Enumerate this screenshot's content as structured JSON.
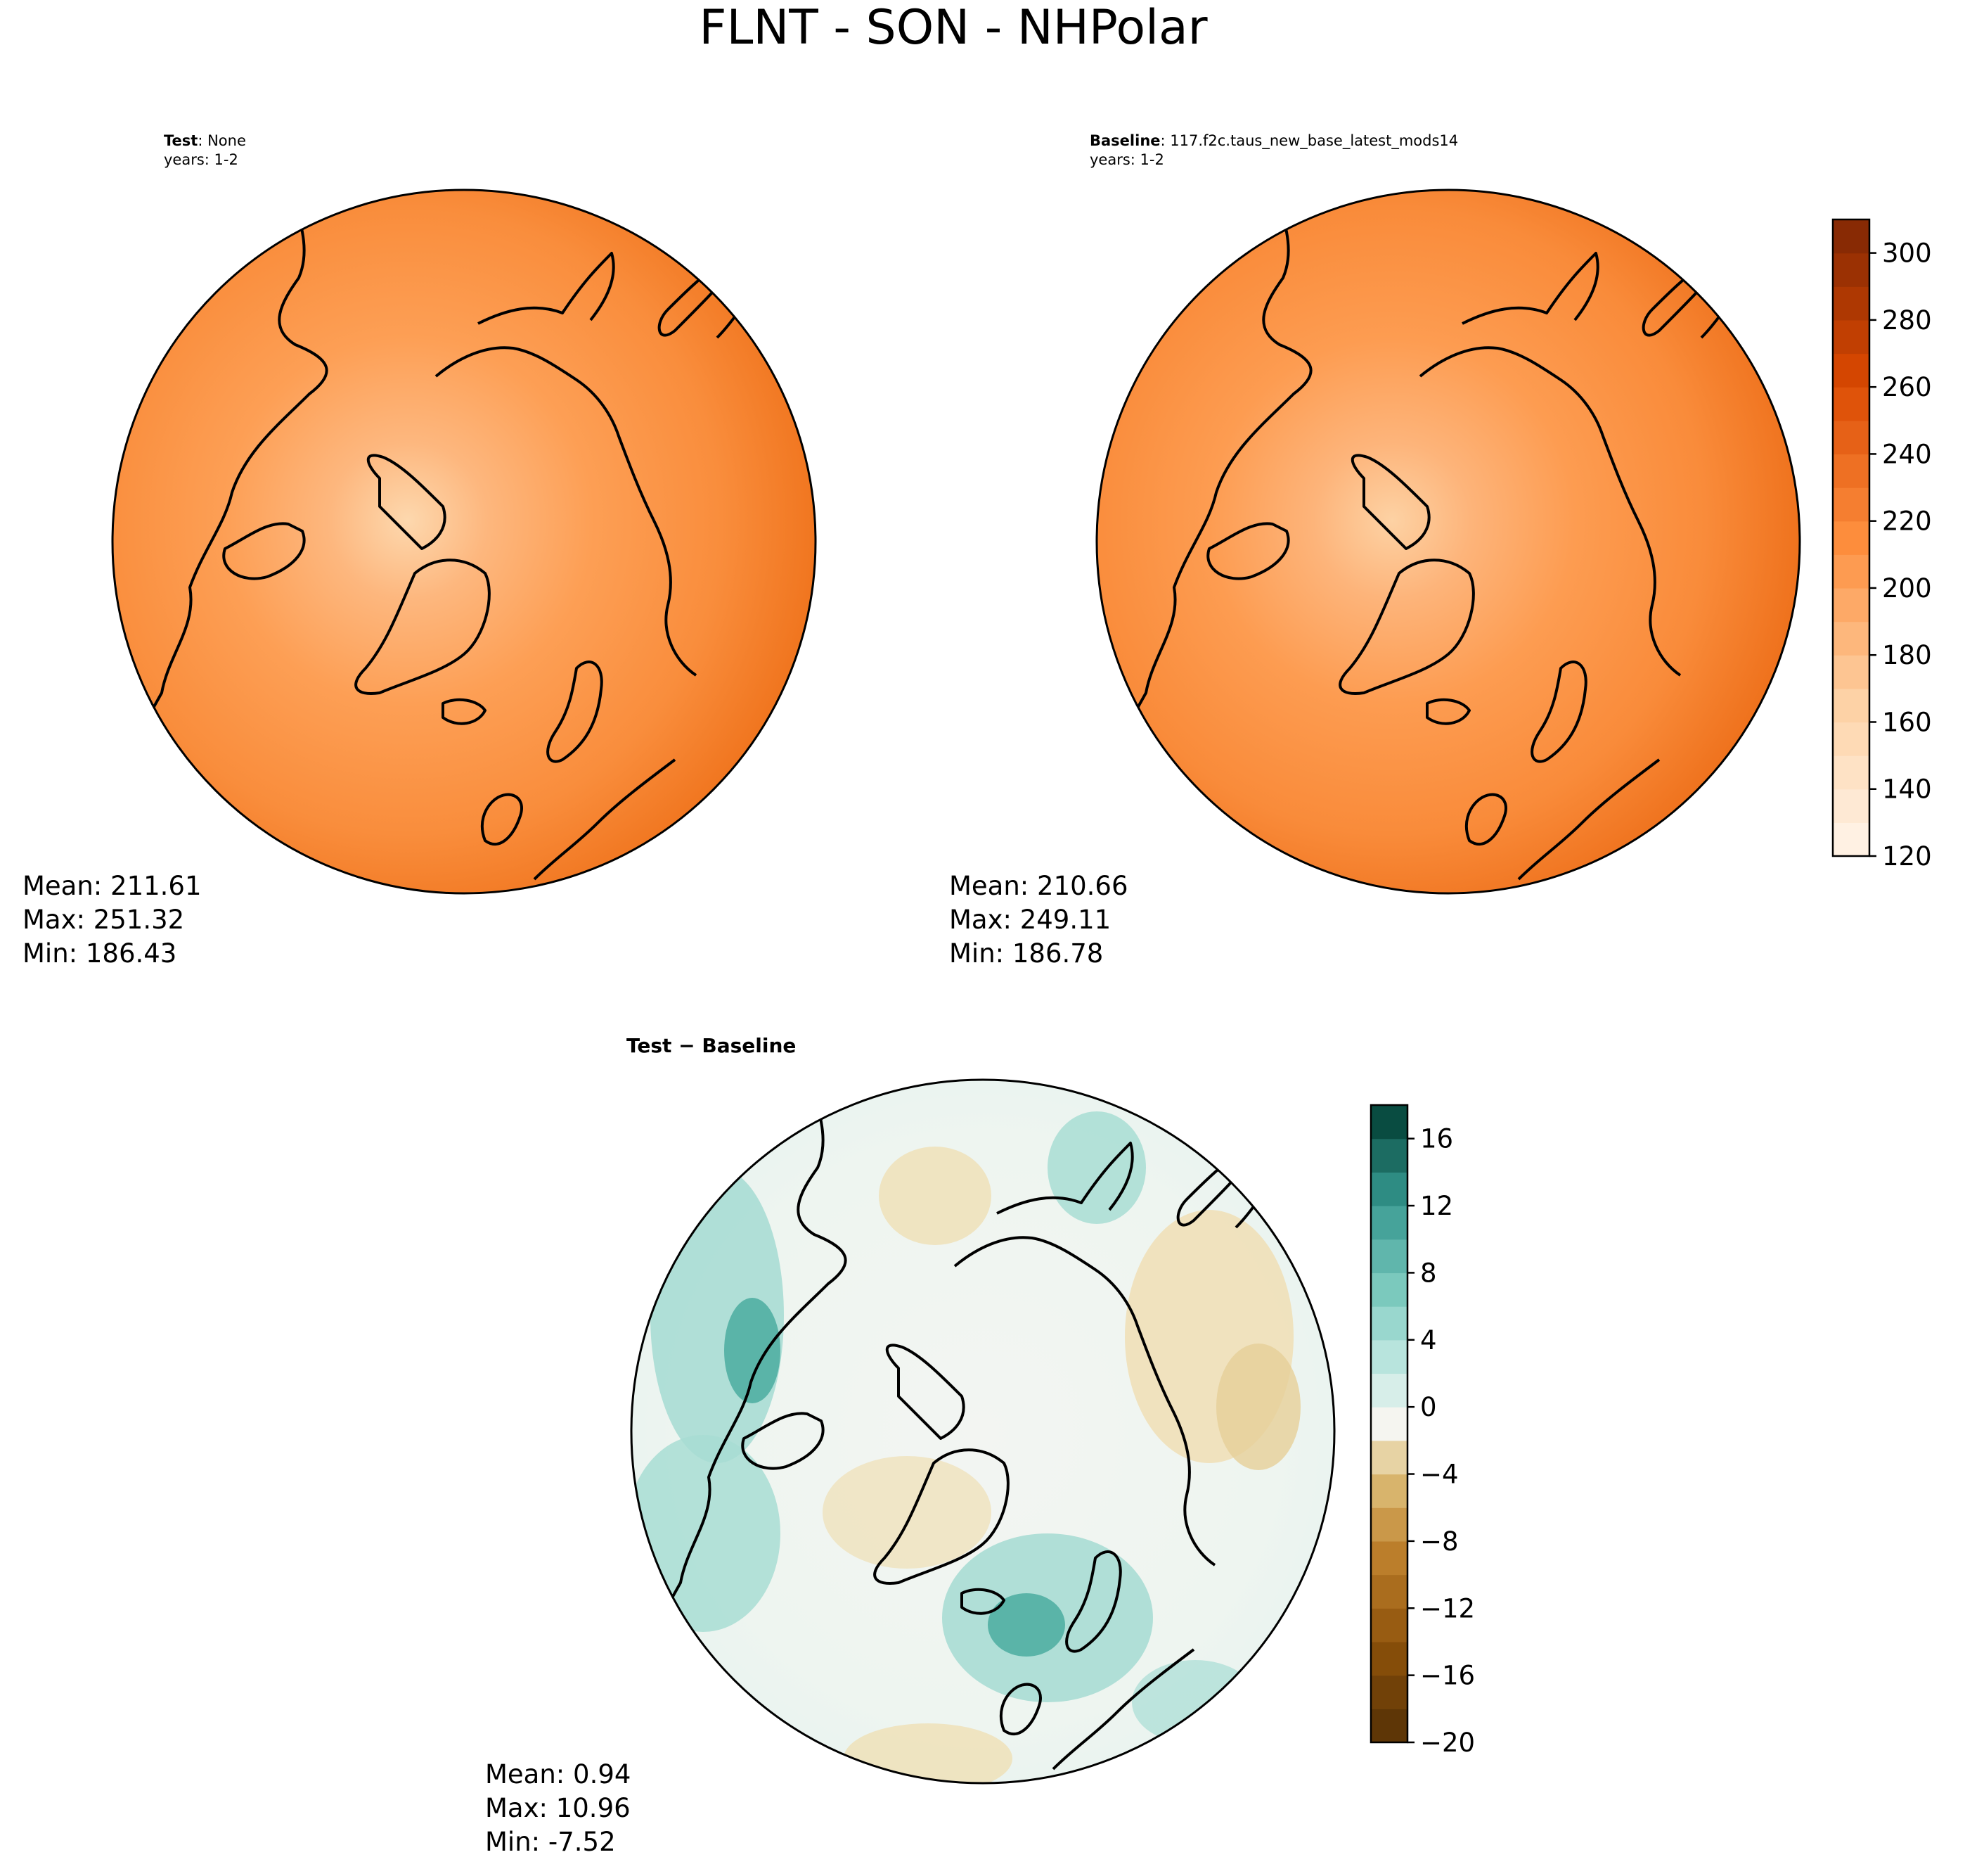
{
  "figure": {
    "title": "FLNT - SON - NHPolar"
  },
  "panels": {
    "test": {
      "label_bold": "Test",
      "label_sep": ":",
      "label_rest": " None",
      "years": "years: 1-2",
      "stats": {
        "mean": "Mean: 211.61",
        "max": "Max: 251.32",
        "min": "Min: 186.43"
      }
    },
    "baseline": {
      "label_bold": "Baseline",
      "label_sep": ":",
      "label_rest": " 117.f2c.taus_new_base_latest_mods14",
      "years": "years: 1-2",
      "stats": {
        "mean": "Mean: 210.66",
        "max": "Max: 249.11",
        "min": "Min: 186.78"
      }
    },
    "diff": {
      "title": "Test − Baseline",
      "stats": {
        "mean": "Mean:  0.94",
        "max": "Max: 10.96",
        "min": "Min: -7.52"
      }
    }
  },
  "colors": {
    "field_outer": "#ee6f17",
    "field_mid": "#f98d3c",
    "field_light": "#fdaf72",
    "field_lightest": "#fdd8ae",
    "coast": "#000000",
    "diff_zero": "#f3f5f2",
    "diff_pos": "#7fcdbb",
    "diff_pos_strong": "#35978f",
    "diff_neg": "#efe0b8"
  },
  "chart_data": [
    {
      "type": "heatmap",
      "name": "Test",
      "projection": "north-polar-stereographic",
      "colorbar": {
        "colormap": "Oranges",
        "range": [
          120,
          310
        ],
        "ticks": [
          120,
          140,
          160,
          180,
          200,
          220,
          240,
          260,
          280,
          300
        ],
        "tick_labels": [
          "120",
          "140",
          "160",
          "180",
          "200",
          "220",
          "240",
          "260",
          "280",
          "300"
        ],
        "levels": 19
      },
      "stats": {
        "mean": 211.61,
        "max": 251.32,
        "min": 186.43
      }
    },
    {
      "type": "heatmap",
      "name": "Baseline",
      "projection": "north-polar-stereographic",
      "colorbar": {
        "colormap": "Oranges",
        "range": [
          120,
          310
        ],
        "ticks": [
          120,
          140,
          160,
          180,
          200,
          220,
          240,
          260,
          280,
          300
        ],
        "tick_labels": [
          "120",
          "140",
          "160",
          "180",
          "200",
          "220",
          "240",
          "260",
          "280",
          "300"
        ],
        "levels": 19
      },
      "stats": {
        "mean": 210.66,
        "max": 249.11,
        "min": 186.78
      }
    },
    {
      "type": "heatmap",
      "name": "Test − Baseline",
      "projection": "north-polar-stereographic",
      "colorbar": {
        "colormap": "BrBG",
        "range": [
          -20,
          18
        ],
        "ticks": [
          -20,
          -16,
          -12,
          -8,
          -4,
          0,
          4,
          8,
          12,
          16
        ],
        "tick_labels": [
          "−20",
          "−16",
          "−12",
          "−8",
          "−4",
          "0",
          "4",
          "8",
          "12",
          "16"
        ],
        "levels": 19
      },
      "stats": {
        "mean": 0.94,
        "max": 10.96,
        "min": -7.52
      }
    }
  ]
}
